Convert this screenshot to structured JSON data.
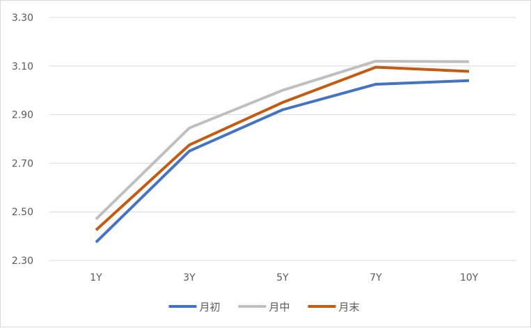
{
  "chart_data": {
    "type": "line",
    "categories": [
      "1Y",
      "3Y",
      "5Y",
      "7Y",
      "10Y"
    ],
    "ylim": [
      2.3,
      3.3
    ],
    "yticks": [
      "2.30",
      "2.50",
      "2.70",
      "2.90",
      "3.10",
      "3.30"
    ],
    "grid": true,
    "legend_position": "bottom",
    "series": [
      {
        "name": "月初",
        "color": "#4472C4",
        "values": [
          2.375,
          2.75,
          2.92,
          3.025,
          3.04
        ]
      },
      {
        "name": "月中",
        "color": "#BFBFBF",
        "values": [
          2.47,
          2.845,
          3.0,
          3.12,
          3.118
        ]
      },
      {
        "name": "月末",
        "color": "#C55A11",
        "values": [
          2.425,
          2.775,
          2.95,
          3.095,
          3.078
        ]
      }
    ]
  }
}
